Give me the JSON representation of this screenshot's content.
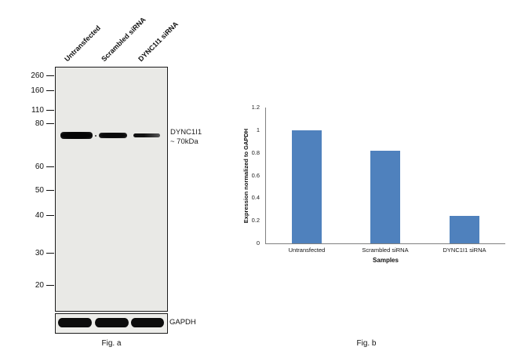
{
  "figure_a": {
    "caption": "Fig. a",
    "lane_labels": [
      "Untransfected",
      "Scrambled siRNA",
      "DYNC1I1 siRNA"
    ],
    "mw_markers": [
      "260",
      "160",
      "110",
      "80",
      "60",
      "50",
      "40",
      "30",
      "20"
    ],
    "band_annotation_line1": "DYNC1I1",
    "band_annotation_line2": "~ 70kDa",
    "loading_control_label": "GAPDH"
  },
  "figure_b": {
    "caption": "Fig. b"
  },
  "chart_data": {
    "type": "bar",
    "title": "",
    "categories": [
      "Untransfected",
      "Scrambled siRNA",
      "DYNC1I1 siRNA"
    ],
    "values": [
      1,
      0.82,
      0.24
    ],
    "xlabel": "Samples",
    "ylabel": "Expression normalized to GAPDH",
    "ylim": [
      0,
      1.2
    ],
    "yticks": [
      0,
      0.2,
      0.4,
      0.6,
      0.8,
      1,
      1.2
    ],
    "bar_color": "#4f81bd",
    "grid": false,
    "legend": false
  }
}
